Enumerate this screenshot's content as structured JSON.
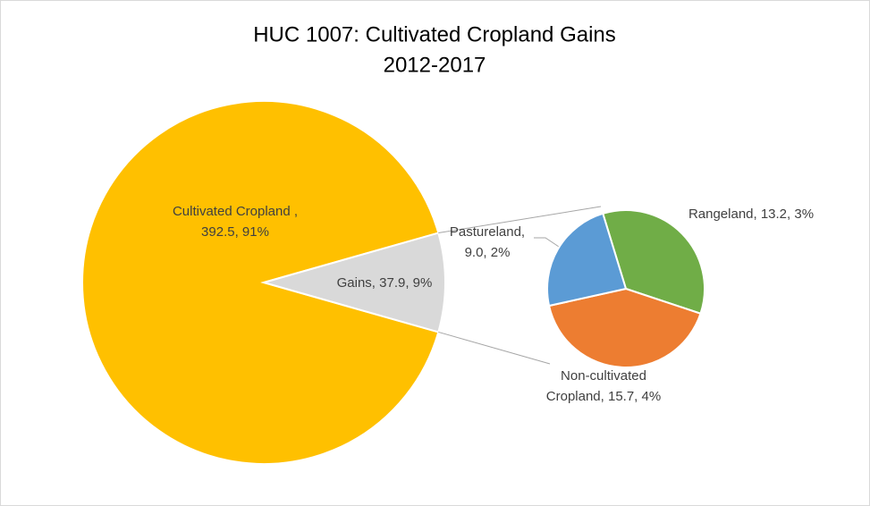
{
  "chart_data": {
    "type": "pie-of-pie",
    "title": "HUC 1007: Cultivated Cropland Gains",
    "subtitle": "2012-2017",
    "categories": [
      "Cultivated Cropland",
      "Gains"
    ],
    "values": [
      392.5,
      37.9
    ],
    "colors": [
      "#ffc000",
      "#d9d9d9"
    ],
    "value_labels": [
      [
        "Cultivated Cropland ,",
        "392.5, 91%"
      ],
      [
        "Gains, 37.9, 9%"
      ]
    ],
    "secondary": {
      "categories": [
        "Rangeland",
        "Non-cultivated Cropland",
        "Pastureland"
      ],
      "values": [
        13.2,
        15.7,
        9.0
      ],
      "colors": [
        "#70ad47",
        "#ed7d31",
        "#5b9bd5"
      ],
      "value_labels": [
        [
          "Rangeland, 13.2, 3%"
        ],
        [
          "Non-cultivated",
          "Cropland, 15.7, 4%"
        ],
        [
          "Pastureland,",
          "9.0, 2%"
        ]
      ]
    }
  }
}
